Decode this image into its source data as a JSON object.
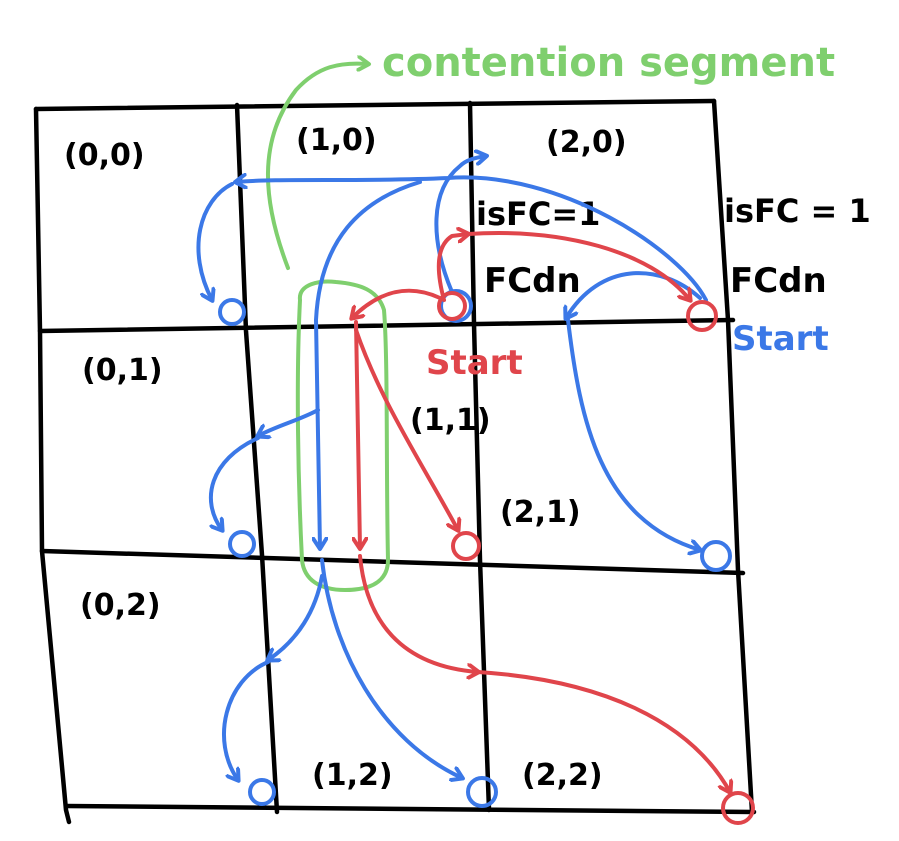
{
  "colors": {
    "grid": "#000000",
    "blue": "#3b78e7",
    "red": "#e0454b",
    "green": "#7fcf6e",
    "label": "#000000"
  },
  "cells": [
    {
      "id": "cell-0-0",
      "label": "(0,0)"
    },
    {
      "id": "cell-1-0",
      "label": "(1,0)"
    },
    {
      "id": "cell-2-0",
      "label": "(2,0)"
    },
    {
      "id": "cell-0-1",
      "label": "(0,1)"
    },
    {
      "id": "cell-1-1",
      "label": "(1,1)"
    },
    {
      "id": "cell-2-1",
      "label": "(2,1)"
    },
    {
      "id": "cell-0-2",
      "label": "(0,2)"
    },
    {
      "id": "cell-1-2",
      "label": "(1,2)"
    },
    {
      "id": "cell-2-2",
      "label": "(2,2)"
    }
  ],
  "annotations": {
    "contention_segment": "contention segment",
    "cell_1_0_isfc": "isFC=1",
    "cell_1_0_fcdn": "FCdn",
    "cell_2_0_isfc": "isFC = 1",
    "cell_2_0_fcdn": "FCdn",
    "start_red": "Start",
    "start_blue": "Start"
  }
}
